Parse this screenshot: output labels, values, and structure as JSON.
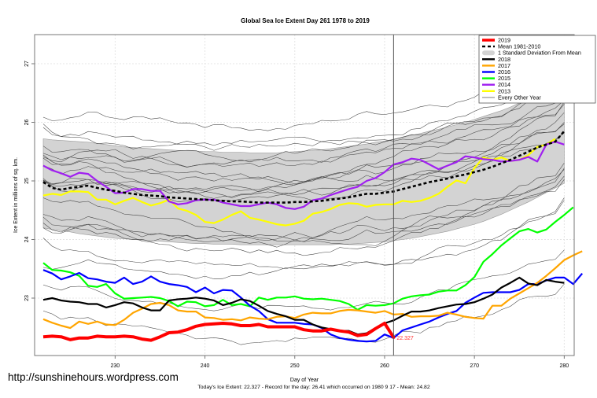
{
  "chart_data": {
    "type": "line",
    "title": "Global Sea Ice Extent Day 261 1978 to 2019",
    "xlabel": "Day of Year",
    "ylabel": "Ice Extent in millions of sq. km.",
    "subtitle": "Today's Ice Extent: 22.327  - Record for the day: 26.41 which occurred on 1980 9 17  - Mean: 24.82",
    "xlim": [
      221,
      281
    ],
    "ylim": [
      22.0,
      27.5
    ],
    "xticks": [
      230,
      240,
      250,
      260,
      270,
      280
    ],
    "yticks": [
      23,
      24,
      25,
      26,
      27
    ],
    "grid": true,
    "current_day": 261,
    "current_value_label": "22.327",
    "legend_position": "top-right",
    "legend": [
      {
        "label": "2019",
        "color": "#ff0000",
        "style": "thick"
      },
      {
        "label": "Mean 1981-2010",
        "color": "#000000",
        "style": "dashed"
      },
      {
        "label": "1 Standard Deviation From Mean",
        "color": "#d3d3d3",
        "style": "band"
      },
      {
        "label": "2018",
        "color": "#000000",
        "style": "solid"
      },
      {
        "label": "2017",
        "color": "#ffa500",
        "style": "solid"
      },
      {
        "label": "2016",
        "color": "#0000ff",
        "style": "solid"
      },
      {
        "label": "2015",
        "color": "#00ff00",
        "style": "solid"
      },
      {
        "label": "2014",
        "color": "#a020f0",
        "style": "solid"
      },
      {
        "label": "2013",
        "color": "#ffff00",
        "style": "solid"
      },
      {
        "label": "Every Other Year",
        "color": "#808080",
        "style": "thin"
      }
    ],
    "x_start": 222,
    "band": {
      "upper": [
        25.72,
        25.7,
        25.69,
        25.68,
        25.67,
        25.66,
        25.64,
        25.62,
        25.6,
        25.58,
        25.57,
        25.56,
        25.55,
        25.54,
        25.53,
        25.52,
        25.52,
        25.51,
        25.5,
        25.5,
        25.49,
        25.49,
        25.49,
        25.48,
        25.48,
        25.48,
        25.48,
        25.49,
        25.5,
        25.51,
        25.52,
        25.53,
        25.55,
        25.57,
        25.59,
        25.61,
        25.63,
        25.66,
        25.68,
        25.71,
        25.74,
        25.78,
        25.81,
        25.85,
        25.88,
        25.92,
        25.96,
        26.0,
        26.05,
        26.1,
        26.15,
        26.2,
        26.26,
        26.33,
        26.4,
        26.48,
        26.56,
        26.64,
        26.75
      ],
      "lower": [
        24.2,
        24.17,
        24.15,
        24.13,
        24.1,
        24.08,
        24.06,
        24.04,
        24.02,
        24.01,
        24.0,
        23.99,
        23.98,
        23.97,
        23.96,
        23.95,
        23.94,
        23.93,
        23.93,
        23.92,
        23.92,
        23.92,
        23.91,
        23.91,
        23.91,
        23.91,
        23.91,
        23.91,
        23.91,
        23.91,
        23.91,
        23.91,
        23.91,
        23.92,
        23.92,
        23.93,
        23.94,
        23.95,
        23.96,
        23.98,
        24.0,
        24.02,
        24.05,
        24.08,
        24.11,
        24.14,
        24.18,
        24.22,
        24.26,
        24.31,
        24.37,
        24.43,
        24.5,
        24.57,
        24.64,
        24.72,
        24.8,
        24.88,
        24.96
      ]
    },
    "series": [
      {
        "name": "2019",
        "color": "#ff0000",
        "values": [
          22.34,
          22.35,
          22.34,
          22.29,
          22.32,
          22.32,
          22.35,
          22.34,
          22.34,
          22.35,
          22.34,
          22.3,
          22.28,
          22.34,
          22.41,
          22.42,
          22.46,
          22.52,
          22.55,
          22.56,
          22.57,
          22.56,
          22.53,
          22.53,
          22.55,
          22.51,
          22.51,
          22.51,
          22.51,
          22.46,
          22.44,
          22.44,
          22.47,
          22.44,
          22.42,
          22.36,
          22.38,
          22.48,
          22.57,
          22.33
        ]
      },
      {
        "name": "Mean 1981-2010",
        "color": "#000000",
        "values": [
          24.98,
          24.88,
          24.85,
          24.88,
          24.9,
          24.92,
          24.88,
          24.85,
          24.83,
          24.8,
          24.78,
          24.76,
          24.75,
          24.74,
          24.72,
          24.71,
          24.7,
          24.69,
          24.68,
          24.67,
          24.66,
          24.65,
          24.65,
          24.64,
          24.63,
          24.63,
          24.63,
          24.63,
          24.64,
          24.64,
          24.65,
          24.66,
          24.68,
          24.7,
          24.72,
          24.75,
          24.78,
          24.78,
          24.8,
          24.82,
          24.86,
          24.9,
          24.94,
          24.98,
          25.01,
          25.04,
          25.08,
          25.11,
          25.15,
          25.19,
          25.24,
          25.3,
          25.36,
          25.43,
          25.5,
          25.57,
          25.62,
          25.67,
          25.85
        ]
      },
      {
        "name": "2018",
        "color": "#000000",
        "values": [
          22.97,
          23.0,
          22.96,
          22.94,
          22.93,
          22.9,
          22.9,
          22.84,
          22.88,
          22.93,
          22.91,
          22.84,
          22.79,
          22.79,
          22.96,
          22.98,
          22.99,
          23.01,
          22.99,
          22.96,
          22.88,
          22.92,
          22.98,
          22.95,
          22.87,
          22.78,
          22.73,
          22.69,
          22.63,
          22.63,
          22.55,
          22.5,
          22.47,
          22.44,
          22.44,
          22.38,
          22.4,
          22.49,
          22.57,
          22.62,
          22.7,
          22.77,
          22.77,
          22.79,
          22.83,
          22.86,
          22.89,
          22.9,
          22.93,
          22.99,
          23.06,
          23.18,
          23.26,
          23.35,
          23.25,
          23.22,
          23.31,
          23.28,
          23.26
        ]
      },
      {
        "name": "2017",
        "color": "#ffa500",
        "values": [
          22.64,
          22.58,
          22.53,
          22.49,
          22.6,
          22.56,
          22.6,
          22.55,
          22.54,
          22.63,
          22.75,
          22.82,
          22.9,
          22.92,
          22.88,
          22.79,
          22.77,
          22.77,
          22.67,
          22.66,
          22.63,
          22.64,
          22.62,
          22.67,
          22.65,
          22.64,
          22.68,
          22.69,
          22.66,
          22.72,
          22.75,
          22.74,
          22.74,
          22.78,
          22.8,
          22.79,
          22.77,
          22.75,
          22.78,
          22.72,
          22.73,
          22.68,
          22.69,
          22.69,
          22.7,
          22.75,
          22.72,
          22.68,
          22.66,
          22.65,
          22.87,
          22.87,
          22.99,
          23.08,
          23.17,
          23.26,
          23.38,
          23.51,
          23.65,
          23.73,
          23.8
        ]
      },
      {
        "name": "2016",
        "color": "#0000ff",
        "values": [
          23.48,
          23.42,
          23.32,
          23.37,
          23.43,
          23.34,
          23.32,
          23.28,
          23.26,
          23.35,
          23.24,
          23.28,
          23.37,
          23.28,
          23.24,
          23.22,
          23.19,
          23.1,
          23.18,
          23.08,
          23.14,
          23.13,
          23.01,
          22.87,
          22.78,
          22.64,
          22.58,
          22.58,
          22.58,
          22.56,
          22.55,
          22.49,
          22.38,
          22.32,
          22.29,
          22.27,
          22.26,
          22.27,
          22.38,
          22.32,
          22.45,
          22.5,
          22.55,
          22.6,
          22.67,
          22.73,
          22.78,
          22.92,
          23.01,
          23.09,
          23.1,
          23.1,
          23.1,
          23.14,
          23.24,
          23.24,
          23.3,
          23.35,
          23.35,
          23.24,
          23.42
        ]
      },
      {
        "name": "2015",
        "color": "#00ff00",
        "values": [
          23.6,
          23.48,
          23.47,
          23.44,
          23.38,
          23.21,
          23.19,
          23.24,
          23.08,
          22.99,
          23.0,
          23.01,
          23.02,
          23.0,
          22.95,
          22.86,
          22.94,
          22.93,
          22.86,
          22.88,
          22.97,
          22.88,
          22.9,
          22.86,
          23.01,
          22.97,
          23.01,
          23.01,
          23.03,
          22.99,
          22.98,
          22.99,
          22.97,
          22.95,
          22.9,
          22.8,
          22.88,
          22.87,
          22.88,
          22.91,
          22.99,
          23.03,
          23.05,
          23.06,
          23.11,
          23.13,
          23.13,
          23.22,
          23.36,
          23.62,
          23.75,
          23.9,
          24.02,
          24.14,
          24.18,
          24.12,
          24.17,
          24.3,
          24.42,
          24.55
        ]
      },
      {
        "name": "2014",
        "color": "#a020f0",
        "values": [
          25.26,
          25.18,
          25.13,
          25.07,
          25.14,
          25.12,
          25.0,
          24.9,
          24.79,
          24.8,
          24.86,
          24.86,
          24.83,
          24.83,
          24.65,
          24.6,
          24.62,
          24.67,
          24.68,
          24.68,
          24.63,
          24.6,
          24.57,
          24.57,
          24.6,
          24.63,
          24.6,
          24.54,
          24.52,
          24.56,
          24.67,
          24.7,
          24.76,
          24.81,
          24.86,
          24.9,
          25.0,
          25.05,
          25.15,
          25.28,
          25.32,
          25.38,
          25.36,
          25.28,
          25.2,
          25.26,
          25.32,
          25.42,
          25.4,
          25.37,
          25.36,
          25.33,
          25.34,
          25.36,
          25.41,
          25.33,
          25.62,
          25.67,
          25.62
        ]
      },
      {
        "name": "2013",
        "color": "#ffff00",
        "values": [
          24.75,
          24.78,
          24.76,
          24.82,
          24.82,
          24.81,
          24.68,
          24.68,
          24.6,
          24.66,
          24.71,
          24.64,
          24.58,
          24.62,
          24.68,
          24.53,
          24.49,
          24.42,
          24.3,
          24.28,
          24.34,
          24.42,
          24.48,
          24.37,
          24.34,
          24.3,
          24.26,
          24.24,
          24.27,
          24.32,
          24.44,
          24.47,
          24.52,
          24.59,
          24.62,
          24.61,
          24.56,
          24.59,
          24.6,
          24.6,
          24.66,
          24.64,
          24.66,
          24.71,
          24.78,
          24.9,
          25.01,
          24.96,
          25.22,
          25.4,
          25.36,
          25.4,
          25.34,
          25.36,
          25.44,
          25.58,
          25.62,
          25.72
        ]
      }
    ]
  },
  "footer": {
    "url": "http://sunshinehours.wordpress.com"
  }
}
